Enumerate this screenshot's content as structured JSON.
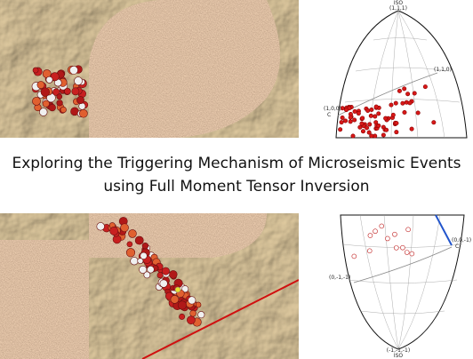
{
  "title": [
    "Exploring the Triggering Mechanism of Microseismic Events",
    "using Full Moment Tensor Inversion"
  ],
  "top_lune": {
    "apex_label": "ISO",
    "apex_coord": "(1,1,1)",
    "right_label": "(1,1,0)",
    "left_coord": "(1,0,0)",
    "left_label": "C"
  },
  "bottom_lune": {
    "right_coord": "(0,0,-1)",
    "right_label": "C",
    "left_label": "(0,-1,-1)",
    "bottom_coord": "(-1,-1,-1)",
    "bottom_label": "ISO"
  }
}
